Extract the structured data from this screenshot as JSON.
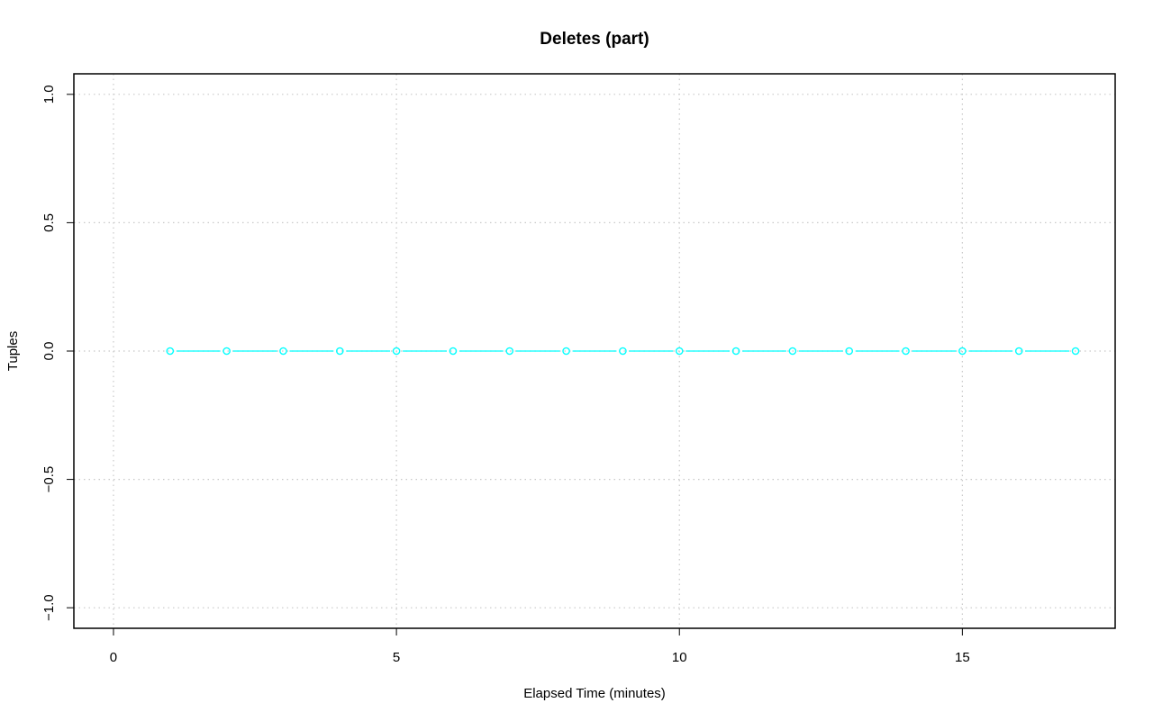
{
  "chart_data": {
    "type": "line",
    "title": "Deletes (part)",
    "xlabel": "Elapsed Time (minutes)",
    "ylabel": "Tuples",
    "xlim": [
      -0.7,
      17.7
    ],
    "ylim": [
      -1.08,
      1.08
    ],
    "x_ticks": [
      0,
      5,
      10,
      15
    ],
    "y_ticks": [
      -1.0,
      -0.5,
      0.0,
      0.5,
      1.0
    ],
    "x_tick_labels": [
      "0",
      "5",
      "10",
      "15"
    ],
    "y_tick_labels": [
      "−1.0",
      "−0.5",
      "0.0",
      "0.5",
      "1.0"
    ],
    "grid": true,
    "series": [
      {
        "color": "#00ffff",
        "marker": "open-circle",
        "x": [
          1,
          2,
          3,
          4,
          5,
          6,
          7,
          8,
          9,
          10,
          11,
          12,
          13,
          14,
          15,
          16,
          17
        ],
        "y": [
          0,
          0,
          0,
          0,
          0,
          0,
          0,
          0,
          0,
          0,
          0,
          0,
          0,
          0,
          0,
          0,
          0
        ]
      }
    ]
  }
}
